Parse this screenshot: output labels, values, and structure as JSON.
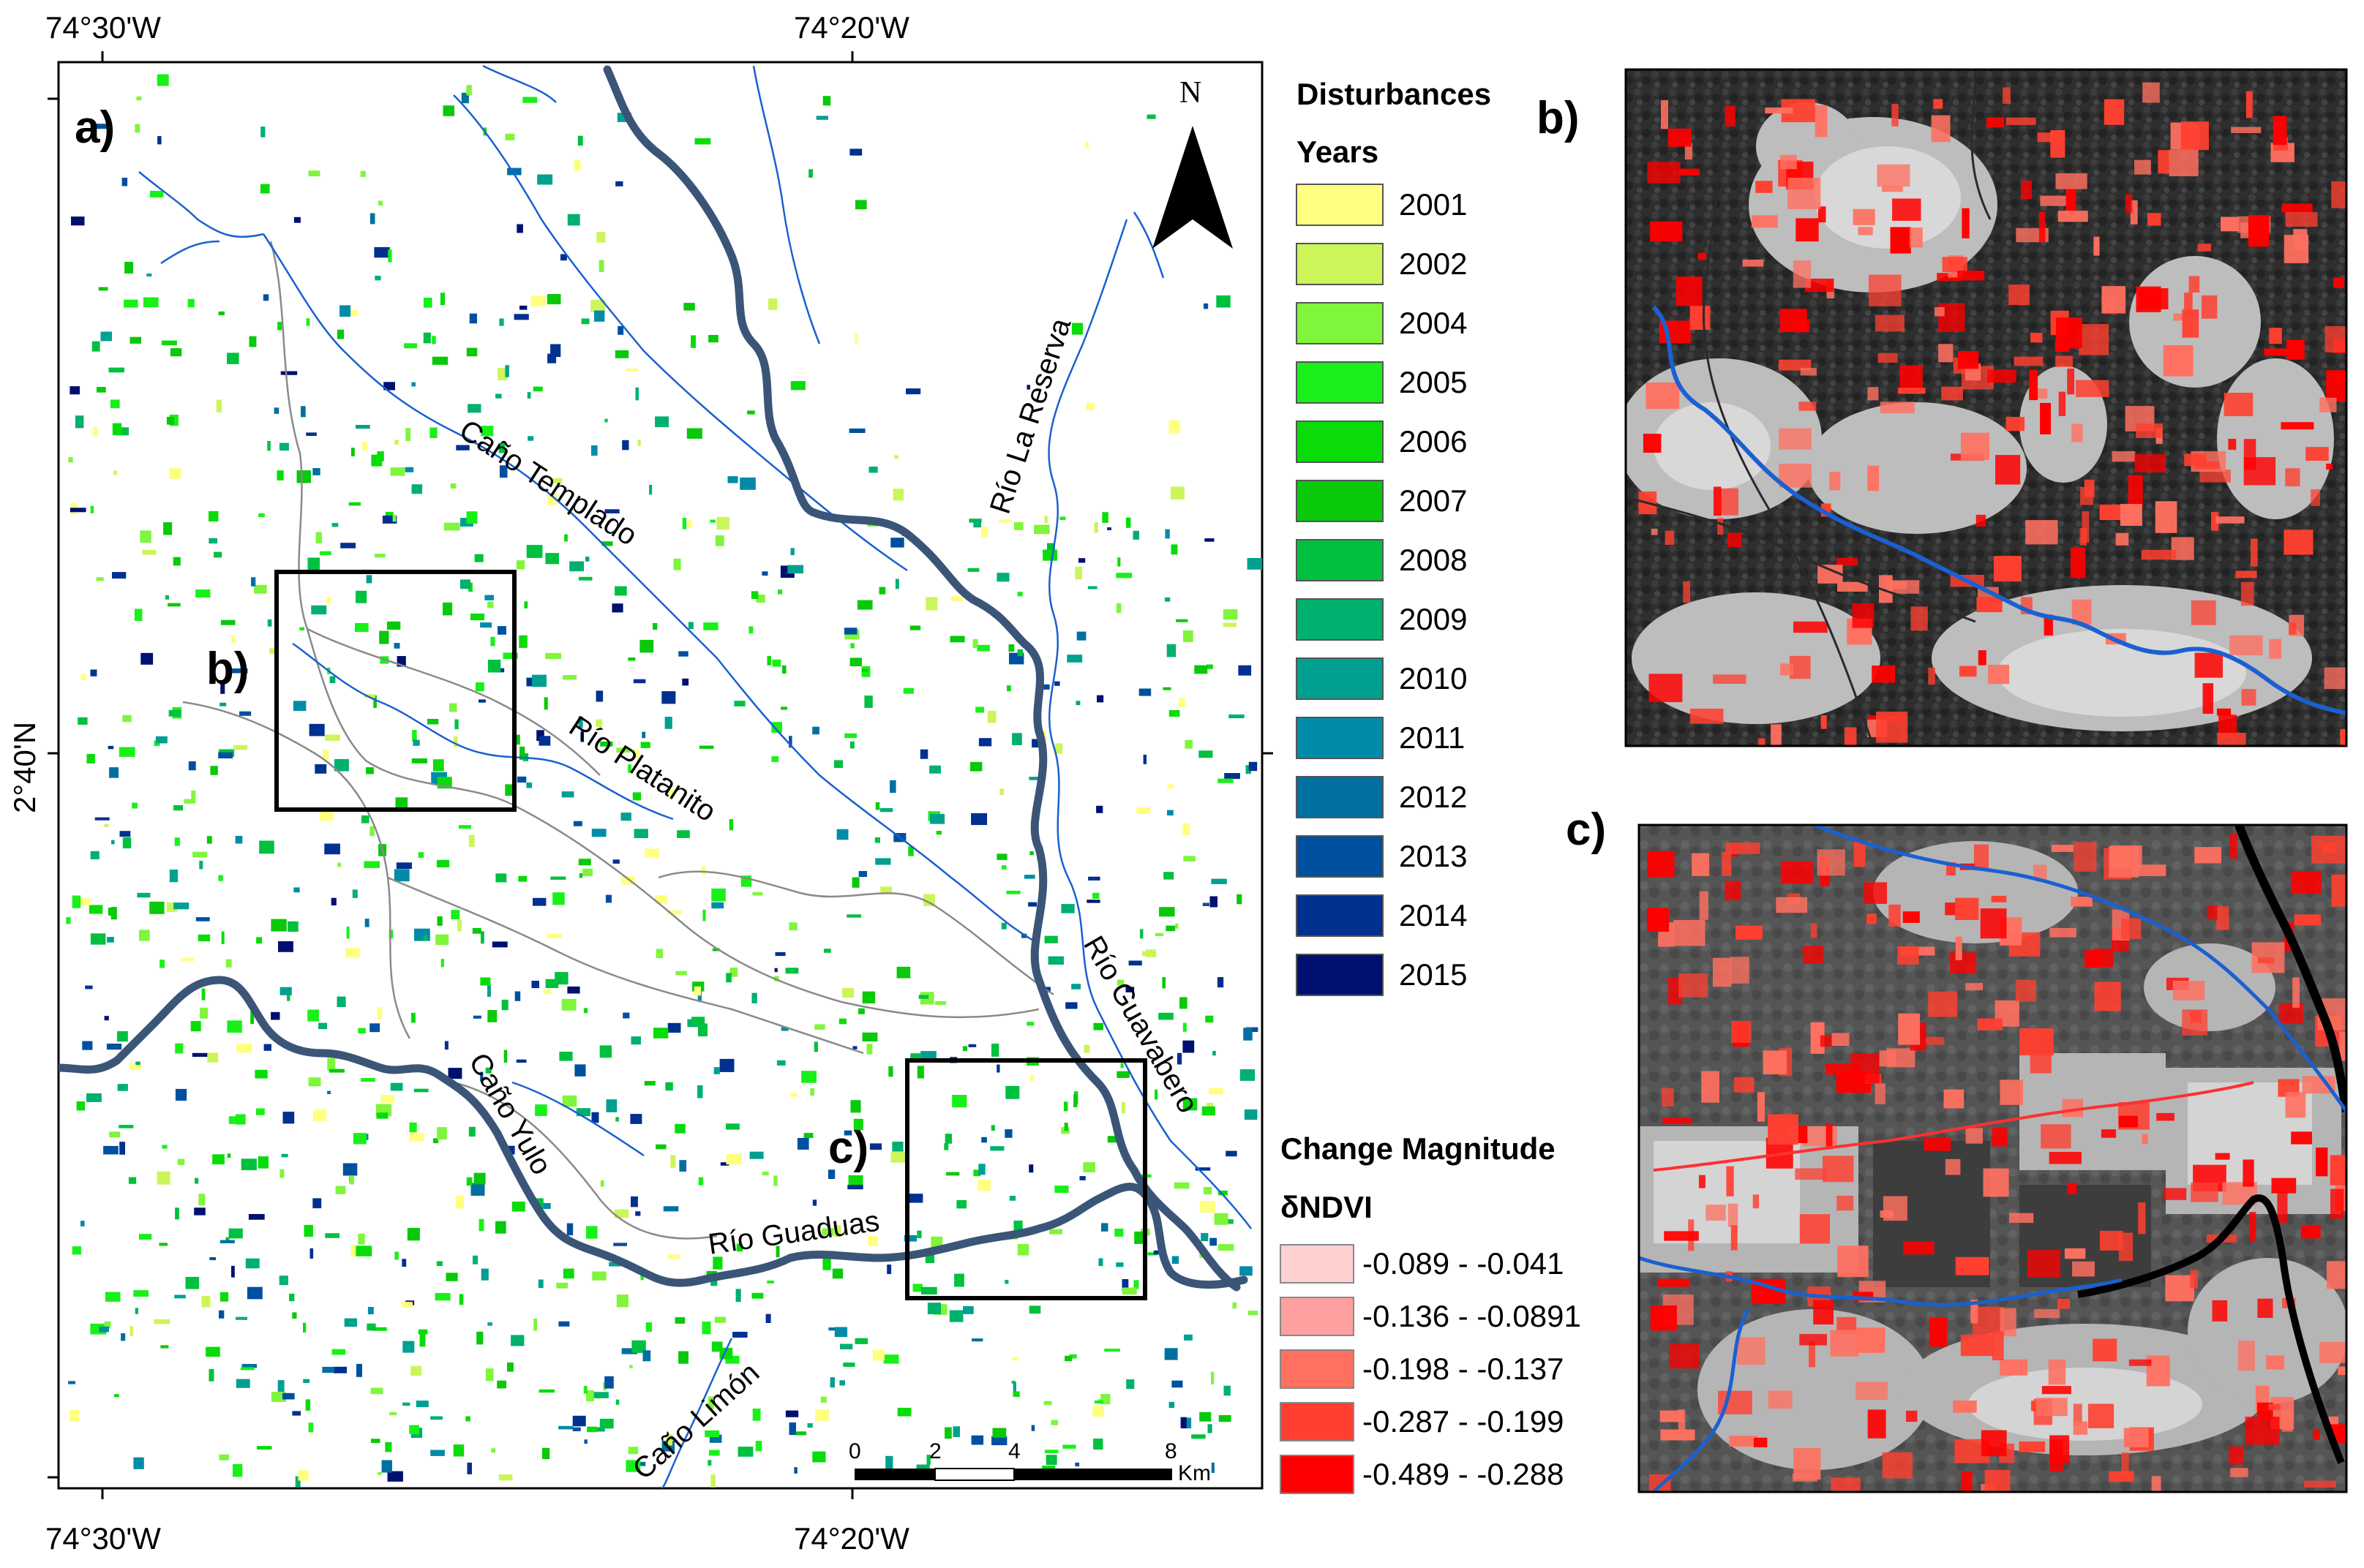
{
  "coordinates": {
    "top_left": "74°30'W",
    "top_right": "74°20'W",
    "bottom_left": "74°30'W",
    "bottom_right": "74°20'W",
    "lat": "2°40'N"
  },
  "panels": {
    "a": "a)",
    "b_map": "b)",
    "c_map": "c)",
    "b_inset": "b)",
    "c_inset": "c)"
  },
  "north": "N",
  "rivers": {
    "cano_templado": "Caño Templado",
    "rio_platanito": "Río Platanito",
    "cano_yulo": "Caño Yulo",
    "rio_guaduas": "Río Guaduas",
    "cano_limon": "Caño Limón",
    "rio_la_reserva": "Río La Reserva",
    "rio_guavabero": "Río Guavabero"
  },
  "scalebar": {
    "ticks": [
      "0",
      "2",
      "4",
      "8"
    ],
    "unit": "Km"
  },
  "legend_disturbances": {
    "title": "Disturbances",
    "subtitle": "Years",
    "items": [
      {
        "label": "2001",
        "color": "#ffff80"
      },
      {
        "label": "2002",
        "color": "#ccf55a"
      },
      {
        "label": "2004",
        "color": "#7ff53b"
      },
      {
        "label": "2005",
        "color": "#19f019"
      },
      {
        "label": "2006",
        "color": "#0adc0a"
      },
      {
        "label": "2007",
        "color": "#0ac80a"
      },
      {
        "label": "2008",
        "color": "#00c040"
      },
      {
        "label": "2009",
        "color": "#00b06e"
      },
      {
        "label": "2010",
        "color": "#00a090"
      },
      {
        "label": "2011",
        "color": "#008ca8"
      },
      {
        "label": "2012",
        "color": "#0070a0"
      },
      {
        "label": "2013",
        "color": "#0050a0"
      },
      {
        "label": "2014",
        "color": "#003090"
      },
      {
        "label": "2015",
        "color": "#001070"
      }
    ]
  },
  "legend_change": {
    "title": "Change Magnitude",
    "subtitle": "δNDVI",
    "items": [
      {
        "label": "-0.089 - -0.041",
        "color": "#ffd0d0"
      },
      {
        "label": "-0.136 - -0.0891",
        "color": "#ffa0a0"
      },
      {
        "label": "-0.198 - -0.137",
        "color": "#ff7060"
      },
      {
        "label": "-0.287 - -0.199",
        "color": "#ff4030"
      },
      {
        "label": "-0.489 - -0.288",
        "color": "#ff0000"
      }
    ]
  },
  "colors": {
    "river_main": "#3a5577",
    "stream": "#1a60d0",
    "road": "#8a8a8a"
  }
}
